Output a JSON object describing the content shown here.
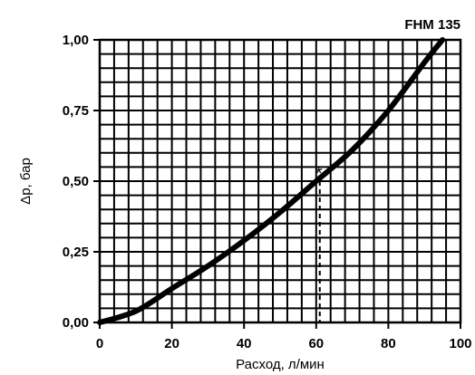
{
  "chart_data": {
    "type": "line",
    "title": "FHM 135",
    "xlabel": "Расход, л/мин",
    "ylabel": "Δp, бар",
    "xlim": [
      0,
      100
    ],
    "ylim": [
      0,
      1
    ],
    "grid": true,
    "x_ticks": [
      0,
      20,
      40,
      60,
      80,
      100
    ],
    "x_tick_labels": [
      "0",
      "20",
      "40",
      "60",
      "80",
      "100"
    ],
    "y_ticks": [
      0,
      0.25,
      0.5,
      0.75,
      1.0
    ],
    "y_tick_labels": [
      "0,00",
      "0,25",
      "0,50",
      "0,75",
      "1,00"
    ],
    "series": [
      {
        "x": [
          0,
          10,
          20,
          30,
          40,
          50,
          60,
          70,
          80,
          90,
          95
        ],
        "y": [
          0,
          0.04,
          0.12,
          0.2,
          0.29,
          0.39,
          0.5,
          0.61,
          0.75,
          0.92,
          1.0
        ]
      }
    ],
    "annotations": [
      {
        "text": "*",
        "x": 61,
        "y": 0.5
      }
    ],
    "reference_point": {
      "x": 61,
      "y": 0.5
    }
  }
}
